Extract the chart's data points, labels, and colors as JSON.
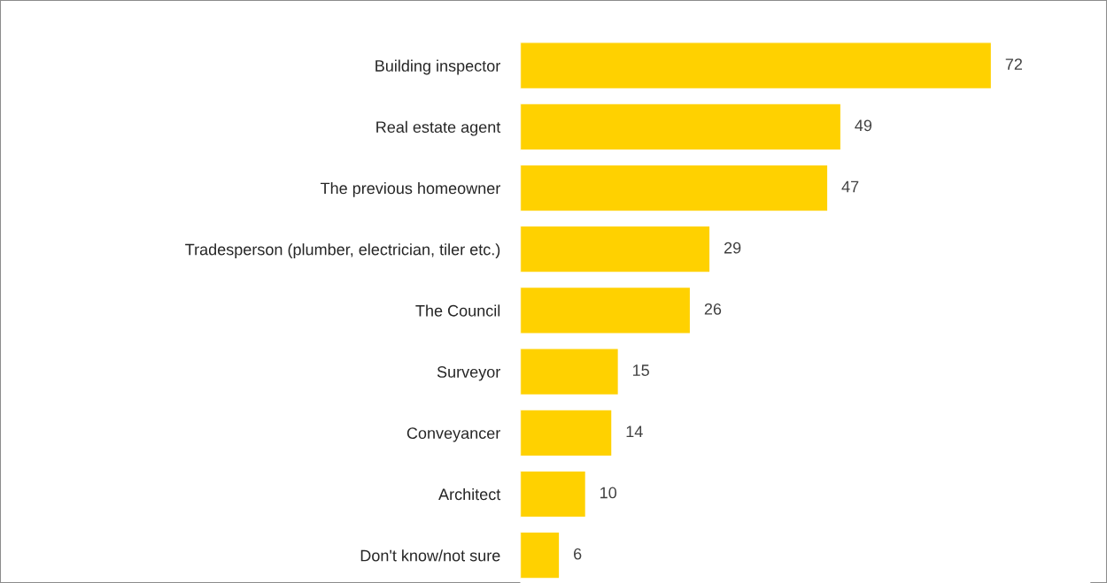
{
  "chart_data": {
    "type": "bar",
    "orientation": "horizontal",
    "data_labels": true,
    "color": "#ffd100",
    "categories": [
      "Building inspector",
      "Real estate agent",
      "The previous homeowner",
      "Tradesperson (plumber, electrician, tiler etc.)",
      "The Council",
      "Surveyor",
      "Conveyancer",
      "Architect",
      "Don't know/not sure"
    ],
    "values": [
      72,
      49,
      47,
      29,
      26,
      15,
      14,
      10,
      6
    ]
  }
}
